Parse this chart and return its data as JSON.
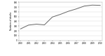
{
  "years": [
    2000,
    2001,
    2002,
    2003,
    2004,
    2005,
    2006,
    2007,
    2008,
    2009,
    2010
  ],
  "values": [
    240,
    320,
    340,
    325,
    490,
    545,
    610,
    660,
    720,
    740,
    735
  ],
  "line_color": "#666666",
  "line_width": 0.7,
  "ylabel": "Numbers of deaths",
  "ylim": [
    0,
    800
  ],
  "yticks": [
    0,
    100,
    200,
    300,
    400,
    500,
    600,
    700,
    800
  ],
  "xlim": [
    1999.8,
    2010.2
  ],
  "xticks": [
    2000,
    2001,
    2002,
    2003,
    2004,
    2005,
    2006,
    2007,
    2008,
    2009,
    2010
  ],
  "background_color": "#ffffff",
  "grid_color": "#d8d8d8"
}
